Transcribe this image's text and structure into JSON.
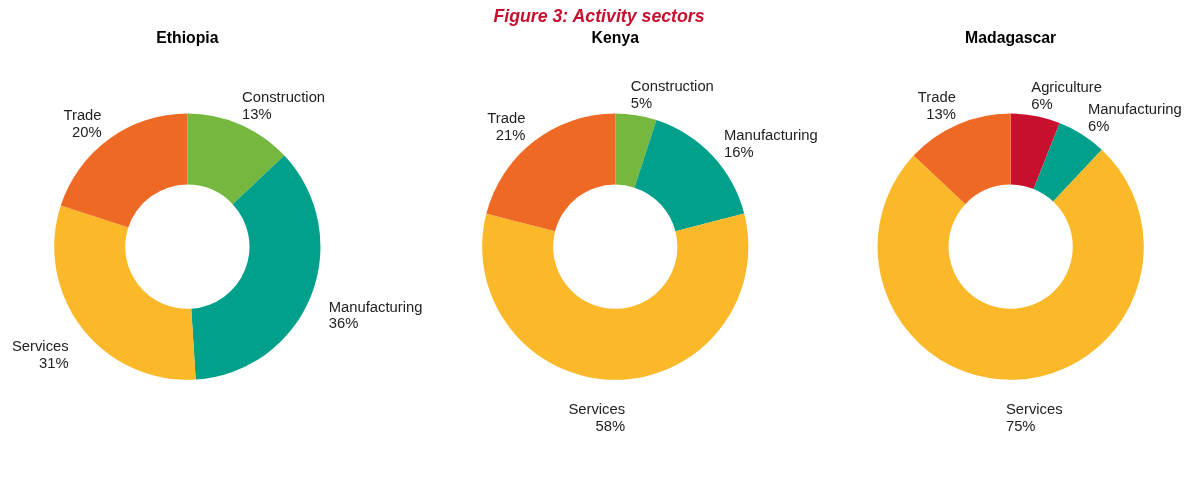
{
  "chart_data": [
    {
      "type": "donut",
      "title": "Ethiopia",
      "annotations": [
        "Figure 3: Activity sectors"
      ],
      "categories": [
        "Construction",
        "Manufacturing",
        "Services",
        "Trade"
      ],
      "values": [
        13,
        36,
        31,
        20
      ],
      "value_labels": [
        "13%",
        "36%",
        "31%",
        "20%"
      ],
      "colors": [
        "#76b83f",
        "#00a08a",
        "#fbb829",
        "#ee6a24"
      ],
      "legend": false
    },
    {
      "type": "donut",
      "title": "Kenya",
      "categories": [
        "Construction",
        "Manufacturing",
        "Services",
        "Trade"
      ],
      "values": [
        5,
        16,
        58,
        21
      ],
      "value_labels": [
        "5%",
        "16%",
        "58%",
        "21%"
      ],
      "colors": [
        "#76b83f",
        "#00a08a",
        "#fbb829",
        "#ee6a24"
      ],
      "legend": false
    },
    {
      "type": "donut",
      "title": "Madagascar",
      "categories": [
        "Agriculture",
        "Manufacturing",
        "Services",
        "Trade"
      ],
      "values": [
        6,
        6,
        75,
        13
      ],
      "value_labels": [
        "6%",
        "6%",
        "75%",
        "13%"
      ],
      "colors": [
        "#c8102e",
        "#00a08a",
        "#fbb829",
        "#ee6a24"
      ],
      "legend": false
    }
  ]
}
